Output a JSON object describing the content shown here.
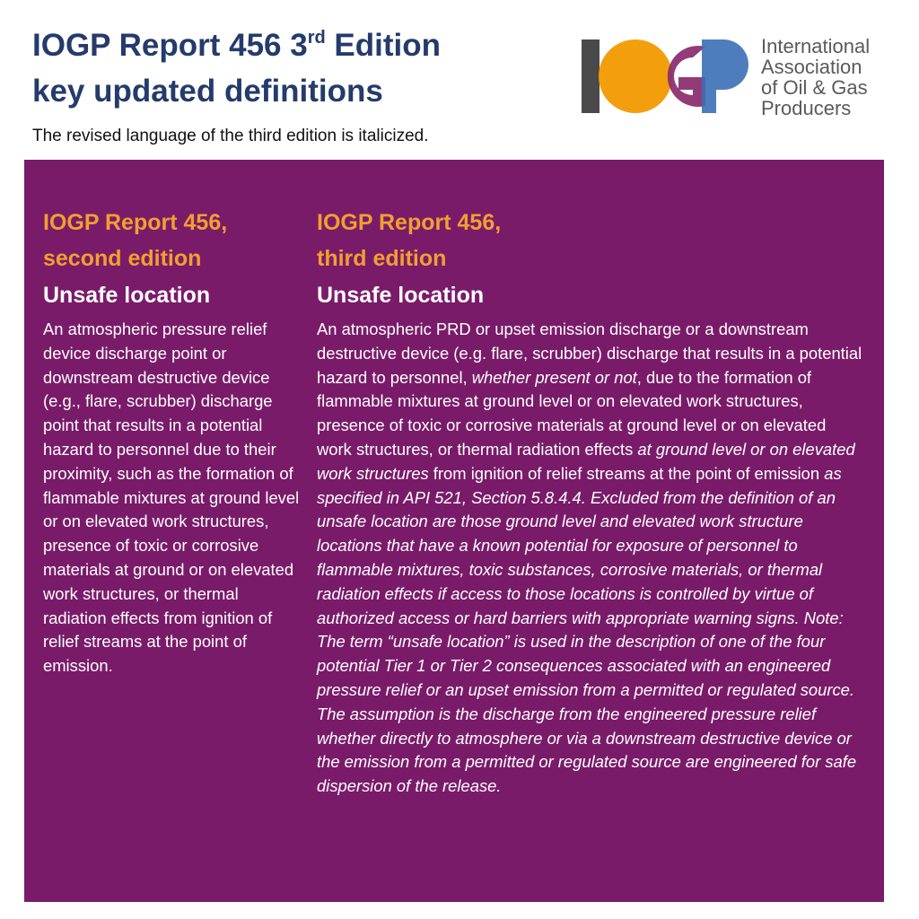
{
  "header": {
    "title_line1_main": "IOGP Report 456 3",
    "title_line1_sup": "rd",
    "title_line1_end": " Edition",
    "title_line2": "key updated definitions",
    "subtitle": "The revised language of the third edition is italicized."
  },
  "logo": {
    "mark_letters": "IOGP",
    "text_lines": [
      "International",
      "Association",
      "of Oil & Gas",
      "Producers"
    ],
    "colors": {
      "i_bar": "#4a4a4a",
      "o_circle": "#f29a00",
      "g_letter": "#8a2a6e",
      "p_letter": "#3b6fb6"
    }
  },
  "panel": {
    "background": "#7a1b6a",
    "heading_color": "#f0a030",
    "left": {
      "edition_line1": "IOGP Report 456,",
      "edition_line2": "second edition",
      "term": "Unsafe location",
      "definition": "An atmospheric pressure relief device discharge point or downstream destructive device (e.g., flare, scrubber) discharge point that results in a potential hazard to personnel due to their proximity, such as the formation of flammable mixtures at ground level or on elevated work structures, presence of toxic or corrosive materials at ground or on elevated work structures, or thermal radiation effects from ignition of relief streams at the point of emission."
    },
    "right": {
      "edition_line1": "IOGP Report 456,",
      "edition_line2": "third edition",
      "term": "Unsafe location",
      "definition_segments": [
        {
          "text": "An atmospheric PRD or upset emission discharge or a downstream destructive device (e.g. flare, scrubber) discharge that results in a potential hazard to personnel, ",
          "italic": false
        },
        {
          "text": "whether present or not",
          "italic": true
        },
        {
          "text": ", due to the formation of flammable mixtures at ground level or on elevated work structures, presence of toxic or corrosive materials at ground level or on elevated work structures, or thermal radiation effects ",
          "italic": false
        },
        {
          "text": "at ground level or on elevated work structures",
          "italic": true
        },
        {
          "text": " from ignition of relief streams at the point of emission ",
          "italic": false
        },
        {
          "text": "as specified in API 521, Section 5.8.4.4. Excluded from the definition of an unsafe location are those ground level and elevated work structure locations that have a known potential for exposure of personnel to flammable mixtures, toxic substances, corrosive materials, or thermal radiation effects if access to those locations is controlled by virtue of authorized access or hard barriers with appropriate warning signs. Note: The term “unsafe location” is used in the description of one of the four potential Tier 1 or Tier 2 consequences associated with an engineered pressure relief or an upset emission from a permitted or regulated source. The assumption is the discharge from the engineered pressure relief whether directly to atmosphere or via a downstream destructive device or the emission from a permitted or regulated source are engineered for safe dispersion of the release.",
          "italic": true
        }
      ]
    }
  }
}
